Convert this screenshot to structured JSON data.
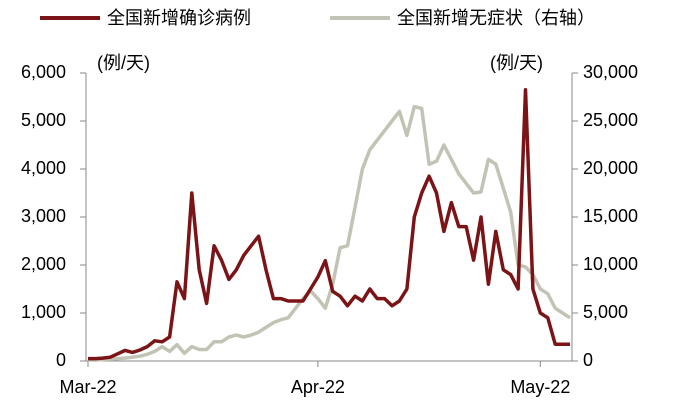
{
  "chart_data": {
    "type": "line",
    "x": [
      0,
      1,
      2,
      3,
      4,
      5,
      6,
      7,
      8,
      9,
      10,
      11,
      12,
      13,
      14,
      15,
      16,
      17,
      18,
      19,
      20,
      21,
      22,
      23,
      24,
      25,
      26,
      27,
      28,
      29,
      30,
      31,
      32,
      33,
      34,
      35,
      36,
      37,
      38,
      39,
      40,
      41,
      42,
      43,
      44,
      45,
      46,
      47,
      48,
      49,
      50,
      51,
      52,
      53,
      54,
      55,
      56,
      57,
      58,
      59,
      60,
      61,
      62,
      63,
      64,
      65
    ],
    "xlim": [
      0,
      65
    ],
    "xticks": [
      {
        "value": 0,
        "label": "Mar-22"
      },
      {
        "value": 31,
        "label": "Apr-22"
      },
      {
        "value": 61,
        "label": "May-22"
      }
    ],
    "ylim": [
      0,
      6000
    ],
    "yticks": [
      0,
      {
        "value": 1000,
        "label": "1,000"
      },
      {
        "value": 2000,
        "label": "2,000"
      },
      {
        "value": 3000,
        "label": "3,000"
      },
      {
        "value": 4000,
        "label": "4,000"
      },
      {
        "value": 5000,
        "label": "5,000"
      },
      {
        "value": 6000,
        "label": "6,000"
      }
    ],
    "y2lim": [
      0,
      30000
    ],
    "y2ticks": [
      0,
      {
        "value": 5000,
        "label": "5,000"
      },
      {
        "value": 10000,
        "label": "10,000"
      },
      {
        "value": 15000,
        "label": "15,000"
      },
      {
        "value": 20000,
        "label": "20,000"
      },
      {
        "value": 25000,
        "label": "25,000"
      },
      {
        "value": 30000,
        "label": "30,000"
      }
    ],
    "annotations": [
      "(例/天)",
      "(例/天)"
    ],
    "series": [
      {
        "name": "全国新增确诊病例",
        "color": "#7b1416",
        "values": [
          50,
          50,
          60,
          80,
          150,
          220,
          180,
          230,
          300,
          420,
          400,
          500,
          1650,
          1300,
          3500,
          1900,
          1200,
          2400,
          2100,
          1700,
          1900,
          2200,
          2400,
          2600,
          1900,
          1300,
          1300,
          1250,
          1250,
          1250,
          1500,
          1750,
          2090,
          1450,
          1350,
          1150,
          1350,
          1250,
          1500,
          1300,
          1300,
          1150,
          1250,
          1500,
          3000,
          3500,
          3850,
          3500,
          2700,
          3300,
          2800,
          2800,
          2100,
          3000,
          1600,
          2700,
          1900,
          1800,
          1500,
          5650,
          1500,
          1000,
          900,
          350,
          350,
          350
        ]
      },
      {
        "name": "全国新增无症状（右轴）",
        "color": "#c3c3b5",
        "axis": "y2",
        "values": [
          100,
          100,
          150,
          200,
          250,
          300,
          400,
          500,
          700,
          1000,
          1500,
          1000,
          1700,
          800,
          1500,
          1200,
          1200,
          2000,
          2000,
          2500,
          2700,
          2500,
          2700,
          3000,
          3500,
          4000,
          4300,
          4500,
          5500,
          6500,
          7300,
          6500,
          5500,
          8000,
          11800,
          12000,
          16000,
          20000,
          22000,
          23000,
          24000,
          25000,
          26000,
          23500,
          26500,
          26300,
          20500,
          20800,
          22500,
          21000,
          19500,
          18500,
          17500,
          17600,
          21000,
          20500,
          18000,
          15500,
          10000,
          9800,
          9000,
          7500,
          7000,
          5500,
          5000,
          4500
        ]
      }
    ]
  }
}
